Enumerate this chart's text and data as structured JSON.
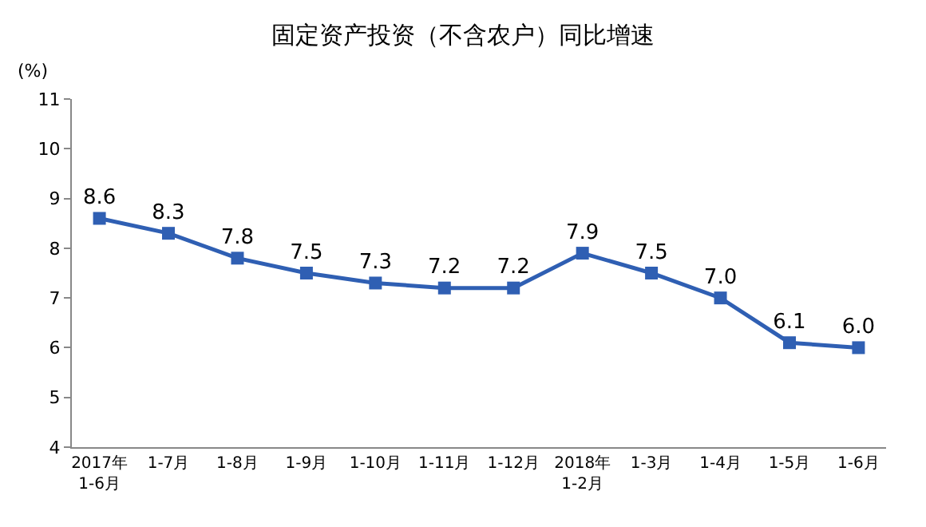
{
  "chart_data": {
    "type": "line",
    "title": "固定资产投资（不含农户）同比增速",
    "ylabel": "(%)",
    "categories": [
      "2017年\n1-6月",
      "1-7月",
      "1-8月",
      "1-9月",
      "1-10月",
      "1-11月",
      "1-12月",
      "2018年\n1-2月",
      "1-3月",
      "1-4月",
      "1-5月",
      "1-6月"
    ],
    "series": [
      {
        "color": "#2f5fb3",
        "values": [
          8.6,
          8.3,
          7.8,
          7.5,
          7.3,
          7.2,
          7.2,
          7.9,
          7.5,
          7.0,
          6.1,
          6.0
        ],
        "value_labels": [
          "8.6",
          "8.3",
          "7.8",
          "7.5",
          "7.3",
          "7.2",
          "7.2",
          "7.9",
          "7.5",
          "7.0",
          "6.1",
          "6.0"
        ]
      }
    ],
    "ylim": [
      4,
      11
    ],
    "yticks": [
      4,
      5,
      6,
      7,
      8,
      9,
      10,
      11
    ],
    "grid": false,
    "marker": "square",
    "line_style": "solid"
  }
}
